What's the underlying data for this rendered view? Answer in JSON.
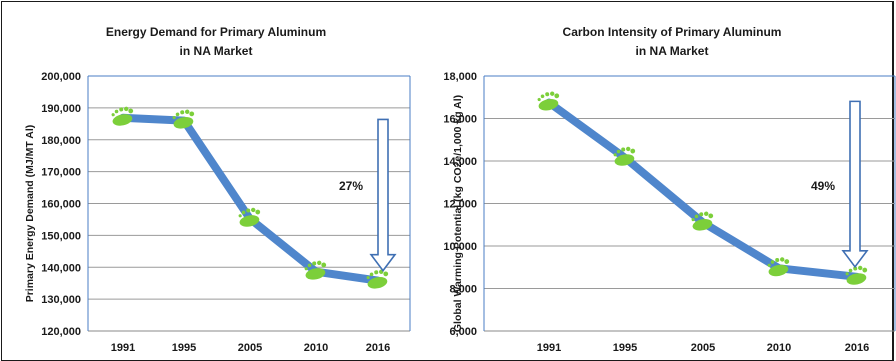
{
  "chart_data": [
    {
      "type": "line",
      "title": [
        "Energy Demand for Primary Aluminum",
        "in NA Market"
      ],
      "xlabel": "",
      "ylabel": "Primary Energy Demand (MJ/MT Al)",
      "categories": [
        "1991",
        "1995",
        "2005",
        "2010",
        "2016"
      ],
      "values": [
        186900,
        186000,
        155200,
        138600,
        135800
      ],
      "ylim": [
        120000,
        200000
      ],
      "yticks": [
        "120,000",
        "130,000",
        "140,000",
        "150,000",
        "160,000",
        "170,000",
        "180,000",
        "190,000",
        "200,000"
      ],
      "grid": true,
      "line_color": "#4f86cc",
      "marker": "footprint-icon",
      "marker_color": "#7ccf3a",
      "annotation": {
        "label": "27%",
        "arrow": "down",
        "from_value": 187000,
        "to_value": 135800
      }
    },
    {
      "type": "line",
      "title": [
        "Carbon Intensity of Primary Aluminum",
        "in NA Market"
      ],
      "xlabel": "",
      "ylabel": "Global Warming Potential (kg CO2e/1,000 kg Al)",
      "categories": [
        "1991",
        "1995",
        "2005",
        "2010",
        "2016"
      ],
      "values": [
        16750,
        14150,
        11100,
        8950,
        8550
      ],
      "ylim": [
        6000,
        18000
      ],
      "yticks": [
        "6,000",
        "8,000",
        "10,000",
        "12,000",
        "14,000",
        "16,000",
        "18,000"
      ],
      "grid": true,
      "line_color": "#4f86cc",
      "marker": "footprint-icon",
      "marker_color": "#7ccf3a",
      "annotation": {
        "label": "49%",
        "arrow": "down",
        "from_value": 16900,
        "to_value": 8550
      }
    }
  ]
}
